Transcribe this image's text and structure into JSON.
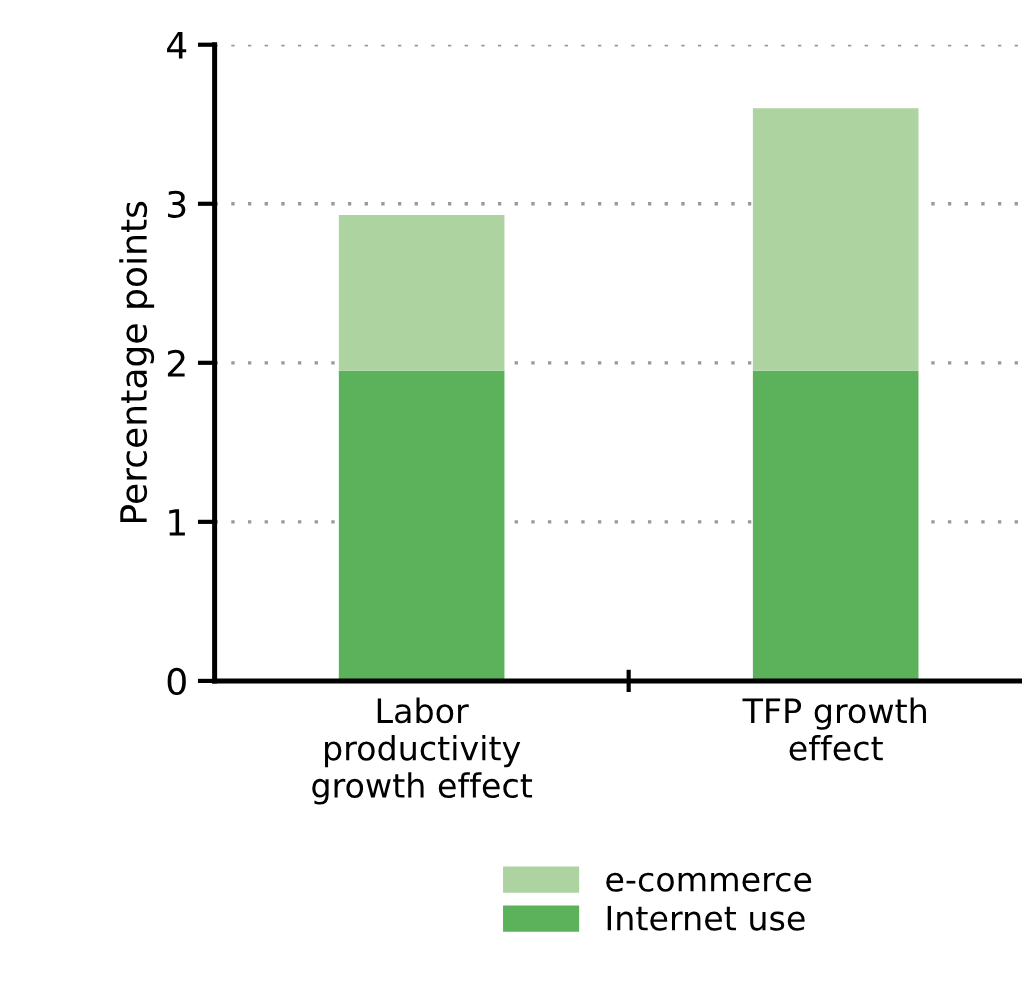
{
  "chart_data": {
    "type": "bar",
    "ylabel": "Percentage points",
    "categories": [
      "Labor\nproductivity\ngrowth effect",
      "TFP growth\neffect"
    ],
    "series": [
      {
        "name": "Internet use",
        "color": "#5cb25a",
        "values": [
          1.95,
          1.95
        ]
      },
      {
        "name": "e-commerce",
        "color": "#add3a1",
        "values": [
          0.98,
          1.65
        ]
      }
    ],
    "stacked": true,
    "ylim": [
      0,
      4
    ],
    "yticks": [
      0,
      1,
      2,
      3,
      4
    ],
    "grid": "y",
    "legend": "bottom"
  }
}
